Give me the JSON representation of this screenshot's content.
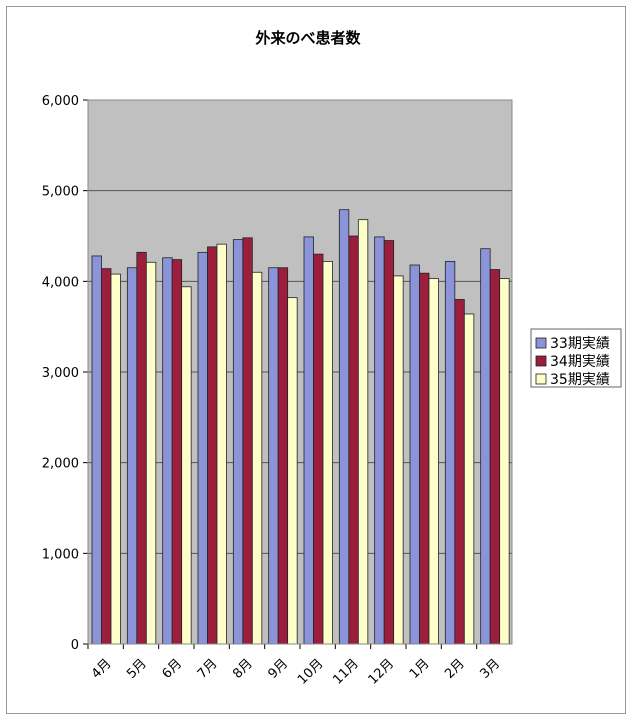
{
  "chart_data": {
    "type": "bar",
    "title": "外来のべ患者数",
    "xlabel": "",
    "ylabel": "",
    "categories": [
      "4月",
      "5月",
      "6月",
      "7月",
      "8月",
      "9月",
      "10月",
      "11月",
      "12月",
      "1月",
      "2月",
      "3月"
    ],
    "series": [
      {
        "name": "33期実績",
        "color": "#8b93d9",
        "values": [
          4280,
          4150,
          4260,
          4320,
          4460,
          4150,
          4490,
          4790,
          4490,
          4180,
          4220,
          4360
        ]
      },
      {
        "name": "34期実績",
        "color": "#9b1f3c",
        "values": [
          4140,
          4320,
          4240,
          4380,
          4480,
          4150,
          4300,
          4500,
          4450,
          4090,
          3800,
          4130
        ]
      },
      {
        "name": "35期実績",
        "color": "#fefec8",
        "values": [
          4080,
          4210,
          3940,
          4410,
          4100,
          3820,
          4220,
          4680,
          4060,
          4030,
          3640,
          4030
        ]
      }
    ],
    "ylim": [
      0,
      6000
    ],
    "yticks": [
      0,
      1000,
      2000,
      3000,
      4000,
      5000,
      6000
    ],
    "ytick_labels": [
      "0",
      "1,000",
      "2,000",
      "3,000",
      "4,000",
      "5,000",
      "6,000"
    ],
    "grid": true,
    "legend_position": "right",
    "plot_background": "#c0c0c0"
  }
}
